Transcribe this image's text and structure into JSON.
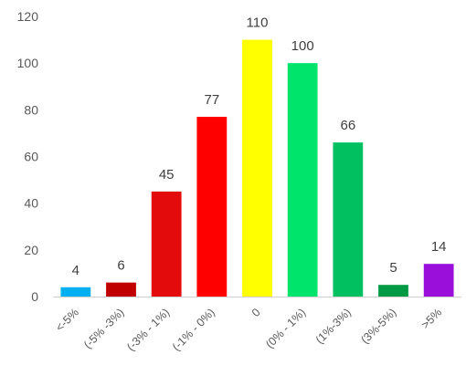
{
  "chart_data": {
    "type": "bar",
    "categories": [
      "<-5%",
      "(-5% -3%)",
      "(-3% - 1%)",
      "(-1% - 0%)",
      "0",
      "(0% - 1%)",
      "(1%-3%)",
      "(3%-5%)",
      ">5%"
    ],
    "values": [
      4,
      6,
      45,
      77,
      110,
      100,
      66,
      5,
      14
    ],
    "colors": [
      "#00B0F0",
      "#C00000",
      "#E30B0B",
      "#FF0000",
      "#FFFF00",
      "#00E46B",
      "#00C060",
      "#009A44",
      "#9B0FDB"
    ],
    "ylim": [
      0,
      120
    ],
    "yticks": [
      0,
      20,
      40,
      60,
      80,
      100,
      120
    ],
    "data_labels": true,
    "grid": false,
    "legend": "none",
    "title": "",
    "xlabel": "",
    "ylabel": ""
  }
}
